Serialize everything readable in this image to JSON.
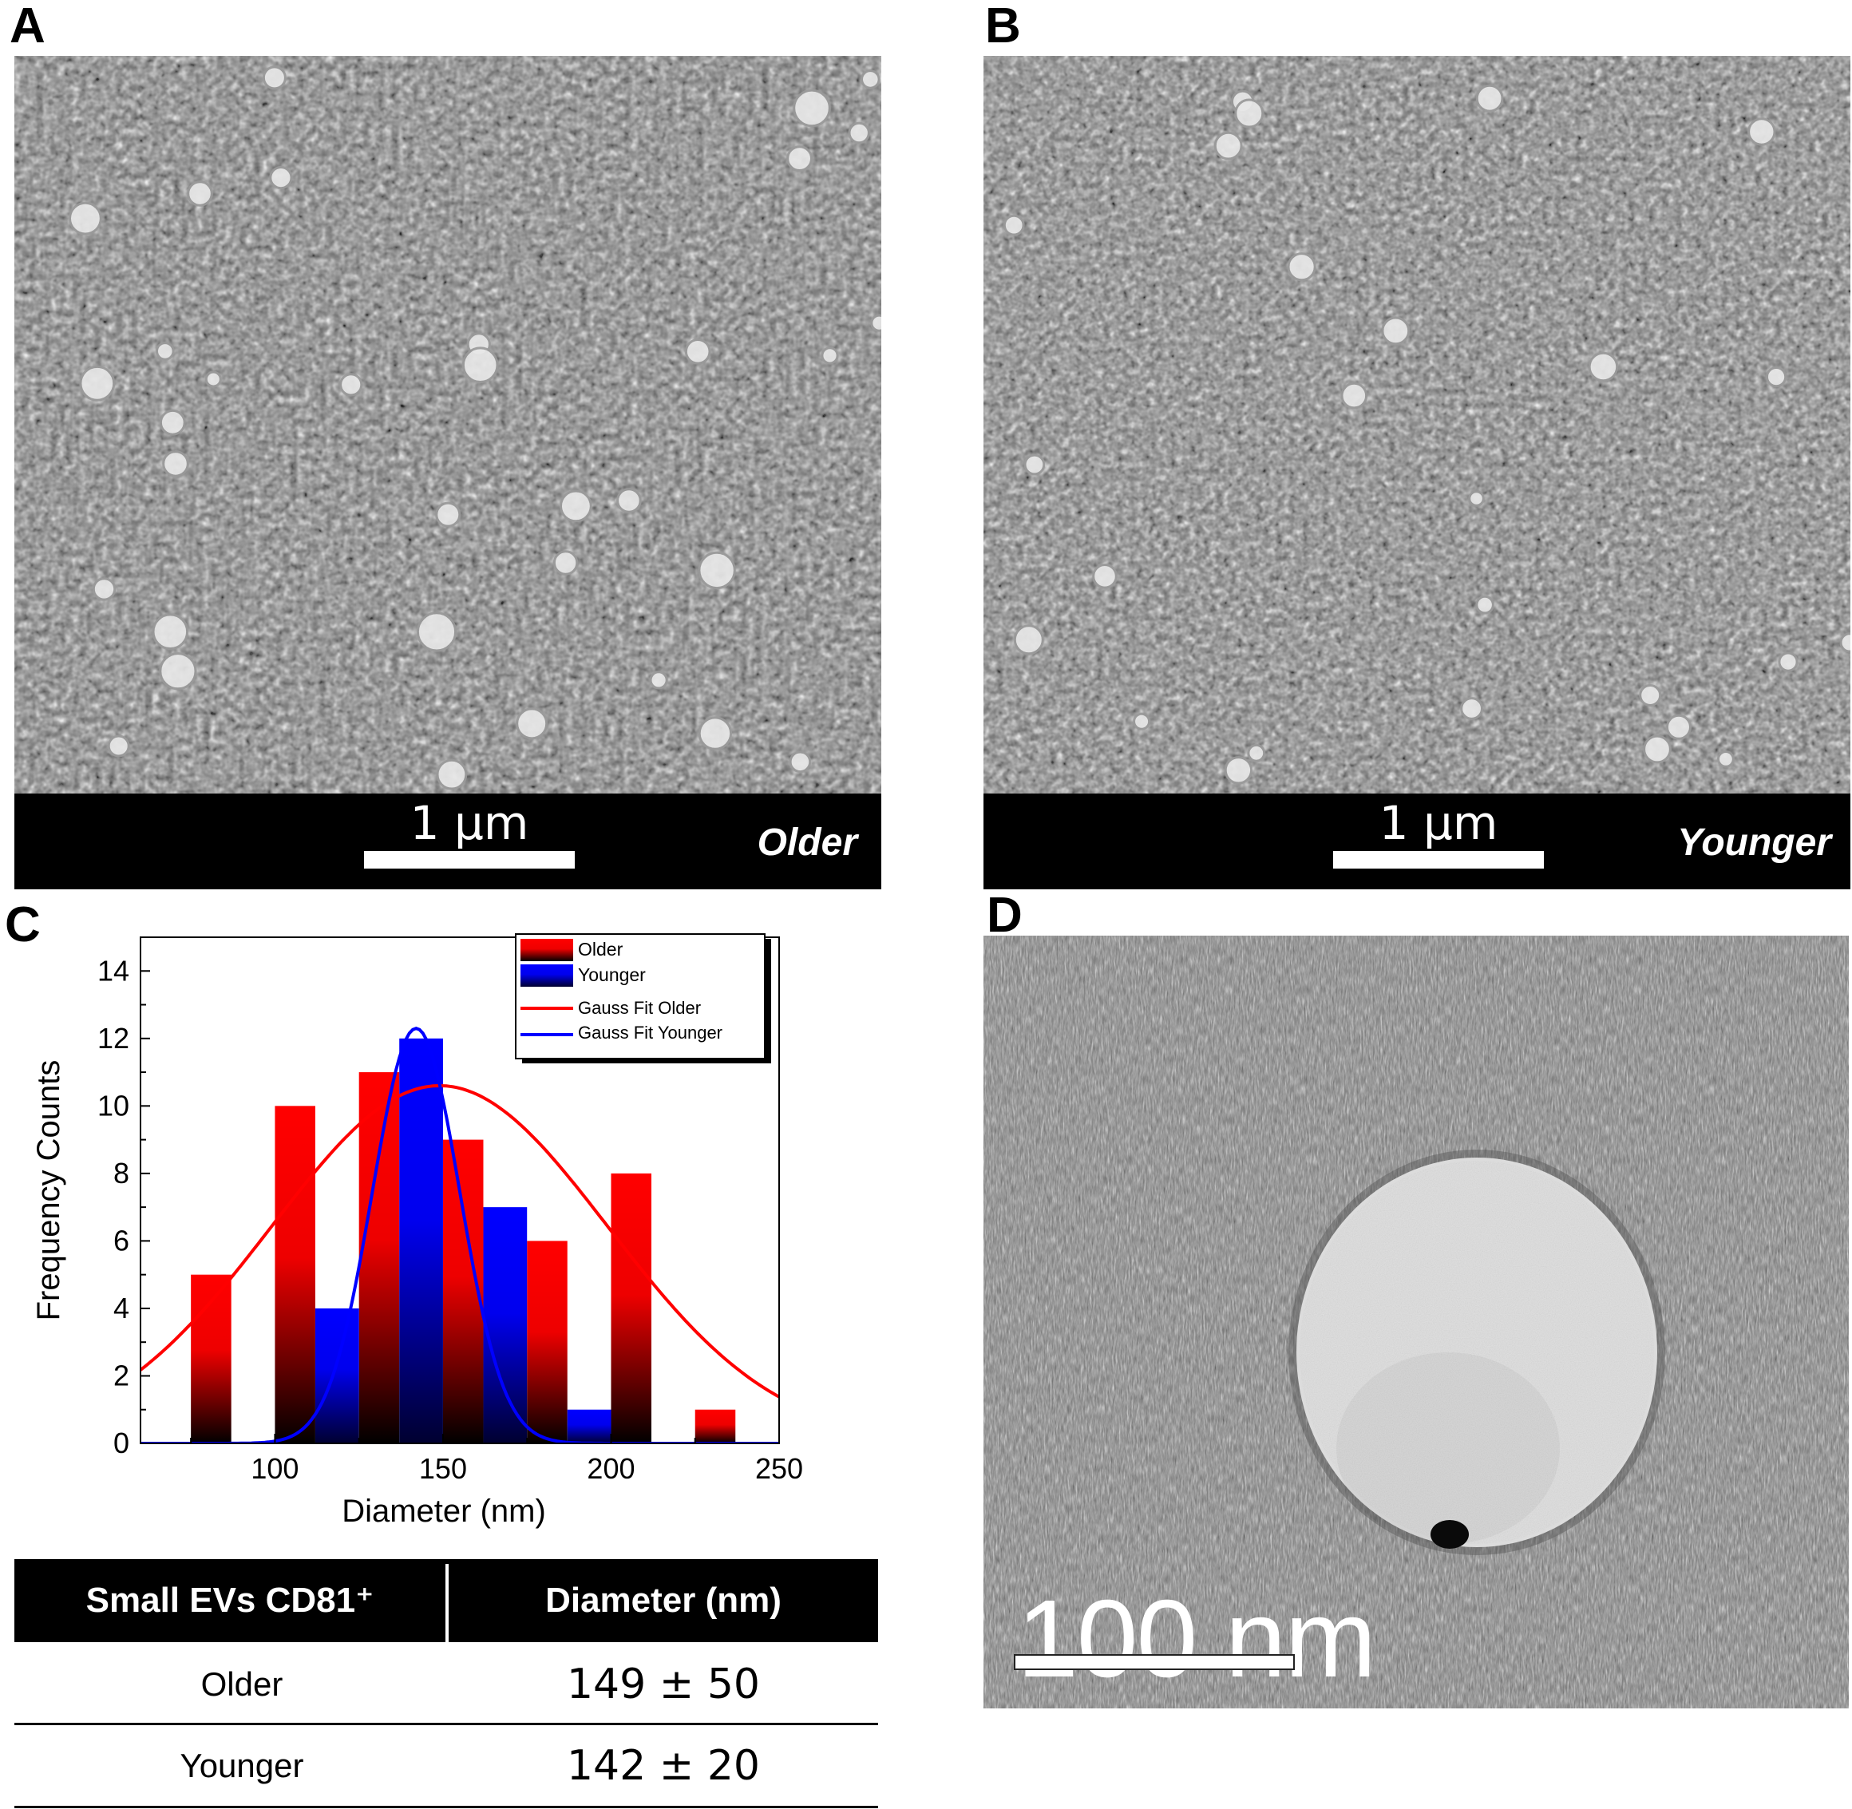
{
  "panels": {
    "a": {
      "letter": "A",
      "scale_label": "1 μm",
      "group_label": "Older"
    },
    "b": {
      "letter": "B",
      "scale_label": "1 μm",
      "group_label": "Younger"
    },
    "c": {
      "letter": "C"
    },
    "d": {
      "letter": "D",
      "scale_label": "100 nm"
    }
  },
  "chart_data": {
    "type": "bar",
    "xlabel": "Diameter (nm)",
    "ylabel": "Frequency Counts",
    "xlim": [
      60,
      250
    ],
    "ylim": [
      0,
      15
    ],
    "xticks": [
      100,
      150,
      200,
      250
    ],
    "yticks": [
      0,
      2,
      4,
      6,
      8,
      10,
      12,
      14
    ],
    "grid": false,
    "legend_position": "top-right",
    "colors": {
      "older": "#ff0000",
      "younger": "#0000ff",
      "dark": "#000000"
    },
    "legend": [
      "Older",
      "Younger",
      "Gauss Fit Older",
      "Gauss Fit Younger"
    ],
    "series": [
      {
        "name": "Older",
        "bins": [
          {
            "x0": 75,
            "x1": 87,
            "count": 5
          },
          {
            "x0": 100,
            "x1": 112,
            "count": 10
          },
          {
            "x0": 125,
            "x1": 137,
            "count": 11
          },
          {
            "x0": 150,
            "x1": 162,
            "count": 9
          },
          {
            "x0": 175,
            "x1": 187,
            "count": 6
          },
          {
            "x0": 200,
            "x1": 212,
            "count": 8
          },
          {
            "x0": 225,
            "x1": 237,
            "count": 1
          }
        ]
      },
      {
        "name": "Younger",
        "bins": [
          {
            "x0": 112,
            "x1": 125,
            "count": 4
          },
          {
            "x0": 137,
            "x1": 150,
            "count": 12
          },
          {
            "x0": 162,
            "x1": 175,
            "count": 7
          },
          {
            "x0": 187,
            "x1": 200,
            "count": 1
          }
        ]
      }
    ],
    "fits": [
      {
        "name": "Gauss Fit Older",
        "mean": 149,
        "amplitude": 10.6,
        "sigma": 50
      },
      {
        "name": "Gauss Fit Younger",
        "mean": 142,
        "amplitude": 12.3,
        "sigma": 13
      }
    ]
  },
  "table": {
    "headers": [
      "Small EVs CD81⁺",
      "Diameter (nm)"
    ],
    "rows": [
      {
        "group": "Older",
        "diameter": "149 ± 50"
      },
      {
        "group": "Younger",
        "diameter": "142 ± 20"
      }
    ]
  }
}
